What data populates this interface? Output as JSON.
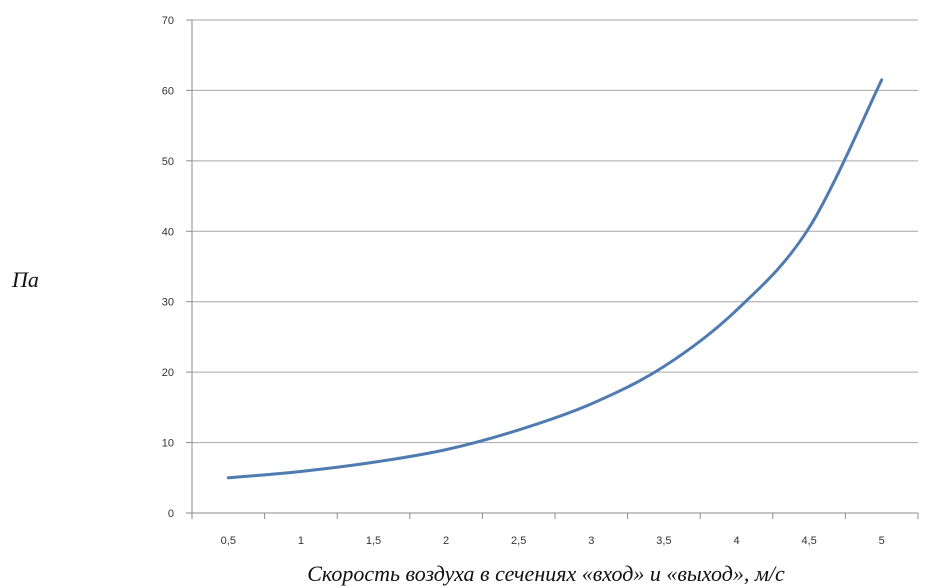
{
  "chart_data": {
    "type": "line",
    "title": "",
    "xlabel": "Скорость воздуха в сечениях «вход» и «выход», м/с",
    "ylabel": "Па",
    "x_categories": [
      "0,5",
      "1",
      "1,5",
      "2",
      "2,5",
      "3",
      "3,5",
      "4",
      "4,5",
      "5"
    ],
    "y_ticks": [
      "0",
      "10",
      "20",
      "30",
      "40",
      "50",
      "60",
      "70"
    ],
    "ylim": [
      0,
      70
    ],
    "grid": true,
    "legend": "none",
    "series": [
      {
        "color": "#4f7bb0",
        "x": [
          0.5,
          1,
          1.5,
          2,
          2.5,
          3,
          3.5,
          4,
          4.5,
          5
        ],
        "values": [
          5.0,
          5.9,
          7.2,
          9.0,
          11.8,
          15.5,
          20.8,
          28.8,
          40.5,
          61.5
        ]
      }
    ]
  }
}
